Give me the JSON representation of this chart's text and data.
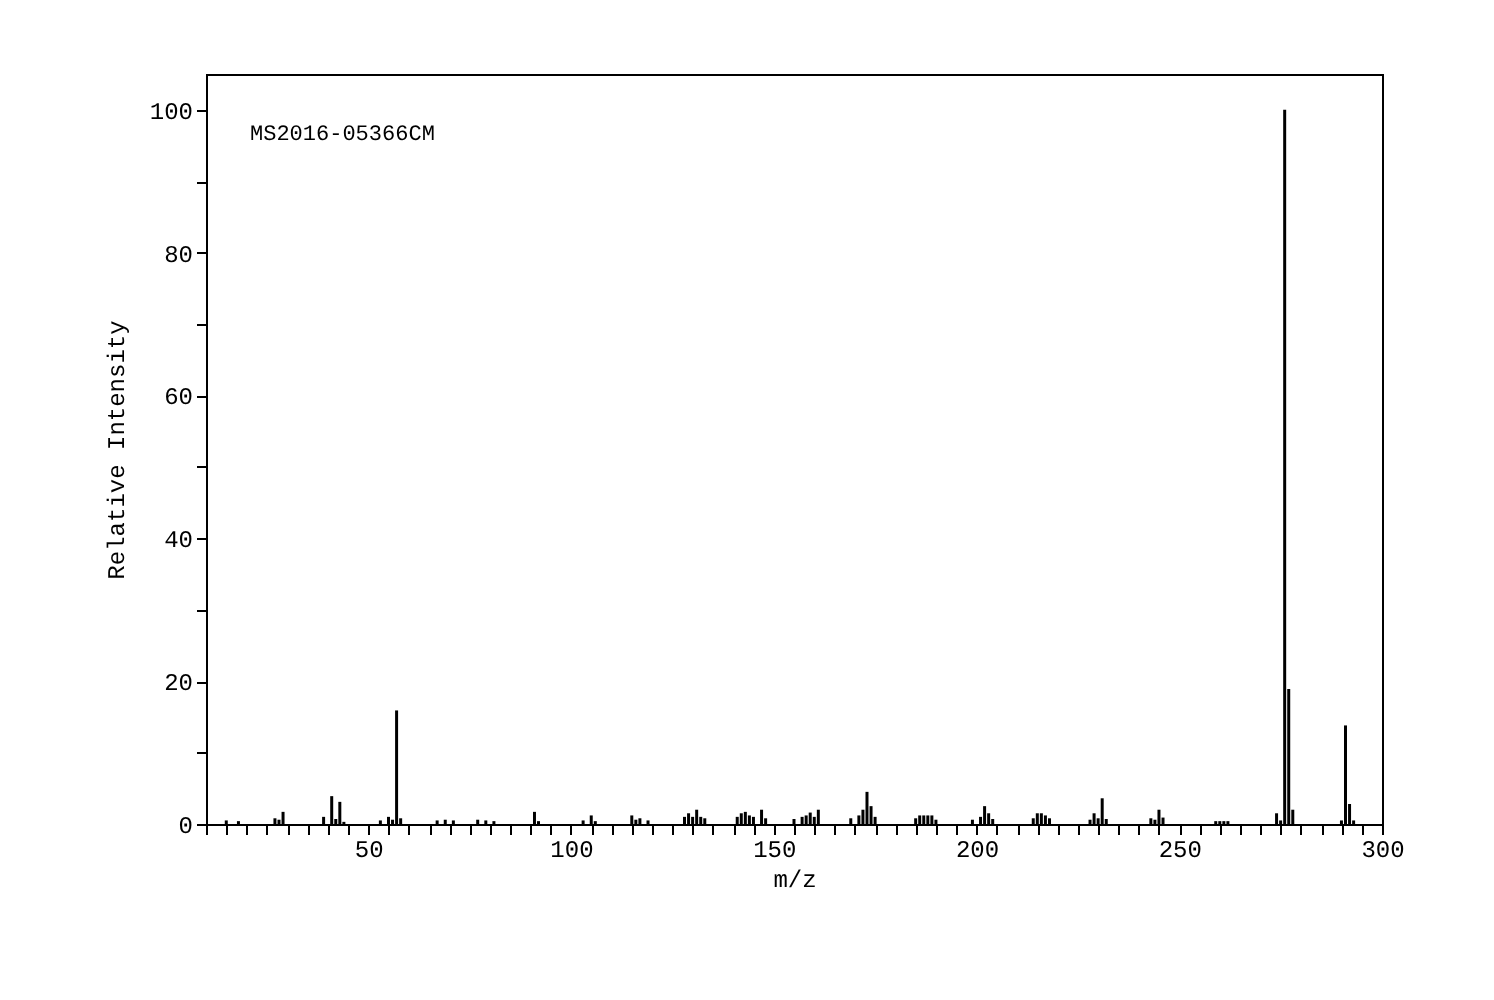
{
  "chart_data": {
    "type": "bar",
    "xlabel": "m/z",
    "ylabel": "Relative Intensity",
    "annotations": [
      "MS2016-05366CM"
    ],
    "x": [
      15,
      18,
      27,
      28,
      29,
      39,
      41,
      42,
      43,
      44,
      53,
      55,
      56,
      57,
      58,
      67,
      69,
      71,
      77,
      79,
      81,
      91,
      92,
      103,
      105,
      106,
      115,
      116,
      117,
      119,
      128,
      129,
      130,
      131,
      132,
      133,
      141,
      142,
      143,
      144,
      145,
      147,
      148,
      155,
      157,
      158,
      159,
      160,
      161,
      169,
      171,
      172,
      173,
      174,
      175,
      185,
      186,
      187,
      188,
      189,
      190,
      199,
      201,
      202,
      203,
      204,
      214,
      215,
      216,
      217,
      218,
      228,
      229,
      230,
      231,
      232,
      243,
      244,
      245,
      246,
      259,
      260,
      261,
      262,
      274,
      275,
      276,
      277,
      278,
      290,
      291,
      292,
      293
    ],
    "series": [
      {
        "color": "#000000",
        "values": [
          0.5,
          0.4,
          0.8,
          0.6,
          1.7,
          1.0,
          3.9,
          0.7,
          3.1,
          0.3,
          0.5,
          1.0,
          0.6,
          15.9,
          0.8,
          0.5,
          0.6,
          0.5,
          0.6,
          0.5,
          0.4,
          1.7,
          0.4,
          0.5,
          1.2,
          0.4,
          1.2,
          0.6,
          0.8,
          0.5,
          1.0,
          1.5,
          1.0,
          2.0,
          1.0,
          0.8,
          1.0,
          1.5,
          1.7,
          1.2,
          1.0,
          2.0,
          0.8,
          0.7,
          1.0,
          1.2,
          1.6,
          1.0,
          2.0,
          0.8,
          1.2,
          2.0,
          4.5,
          2.5,
          1.0,
          0.8,
          1.2,
          1.2,
          1.2,
          1.2,
          0.6,
          0.6,
          1.0,
          2.5,
          1.5,
          0.7,
          0.8,
          1.5,
          1.5,
          1.2,
          0.8,
          0.6,
          1.5,
          0.8,
          3.6,
          0.7,
          0.8,
          0.6,
          2.0,
          0.9,
          0.4,
          0.4,
          0.4,
          0.4,
          1.5,
          0.5,
          100,
          18.9,
          2.0,
          0.5,
          13.8,
          2.8,
          0.5
        ]
      }
    ],
    "xlim": [
      10,
      300
    ],
    "ylim": [
      0,
      105
    ],
    "xticks": [
      {
        "value": 10,
        "label": null
      },
      {
        "value": 15,
        "label": null
      },
      {
        "value": 20,
        "label": null
      },
      {
        "value": 25,
        "label": null
      },
      {
        "value": 30,
        "label": null
      },
      {
        "value": 35,
        "label": null
      },
      {
        "value": 40,
        "label": null
      },
      {
        "value": 45,
        "label": null
      },
      50,
      {
        "value": 55,
        "label": null
      },
      {
        "value": 60,
        "label": null
      },
      {
        "value": 65,
        "label": null
      },
      {
        "value": 70,
        "label": null
      },
      {
        "value": 75,
        "label": null
      },
      {
        "value": 80,
        "label": null
      },
      {
        "value": 85,
        "label": null
      },
      {
        "value": 90,
        "label": null
      },
      {
        "value": 95,
        "label": null
      },
      100,
      {
        "value": 105,
        "label": null
      },
      {
        "value": 110,
        "label": null
      },
      {
        "value": 115,
        "label": null
      },
      {
        "value": 120,
        "label": null
      },
      {
        "value": 125,
        "label": null
      },
      {
        "value": 130,
        "label": null
      },
      {
        "value": 135,
        "label": null
      },
      {
        "value": 140,
        "label": null
      },
      {
        "value": 145,
        "label": null
      },
      150,
      {
        "value": 155,
        "label": null
      },
      {
        "value": 160,
        "label": null
      },
      {
        "value": 165,
        "label": null
      },
      {
        "value": 170,
        "label": null
      },
      {
        "value": 175,
        "label": null
      },
      {
        "value": 180,
        "label": null
      },
      {
        "value": 185,
        "label": null
      },
      {
        "value": 190,
        "label": null
      },
      {
        "value": 195,
        "label": null
      },
      200,
      {
        "value": 205,
        "label": null
      },
      {
        "value": 210,
        "label": null
      },
      {
        "value": 215,
        "label": null
      },
      {
        "value": 220,
        "label": null
      },
      {
        "value": 225,
        "label": null
      },
      {
        "value": 230,
        "label": null
      },
      {
        "value": 235,
        "label": null
      },
      {
        "value": 240,
        "label": null
      },
      {
        "value": 245,
        "label": null
      },
      250,
      {
        "value": 255,
        "label": null
      },
      {
        "value": 260,
        "label": null
      },
      {
        "value": 265,
        "label": null
      },
      {
        "value": 270,
        "label": null
      },
      {
        "value": 275,
        "label": null
      },
      {
        "value": 280,
        "label": null
      },
      {
        "value": 285,
        "label": null
      },
      {
        "value": 290,
        "label": null
      },
      {
        "value": 295,
        "label": null
      },
      300
    ],
    "yticks": [
      0,
      {
        "value": 10,
        "label": null
      },
      20,
      {
        "value": 30,
        "label": null
      },
      40,
      {
        "value": 50,
        "label": null
      },
      60,
      {
        "value": 70,
        "label": null
      },
      80,
      {
        "value": 90,
        "label": null
      },
      100
    ],
    "grid": false
  }
}
